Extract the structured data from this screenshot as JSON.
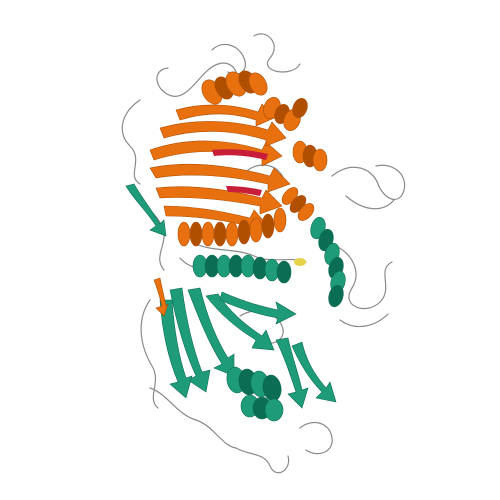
{
  "image": {
    "background": "#ffffff"
  },
  "colors": {
    "domain_top": "#E8700E",
    "domain_top_dark": "#B04F00",
    "domain_bottom": "#1E9C7A",
    "domain_bottom_dark": "#0B6E54",
    "loop": "#8A8A8A",
    "highlight_red": "#C81E3A",
    "highlight_yellow": "#E6D34A"
  }
}
